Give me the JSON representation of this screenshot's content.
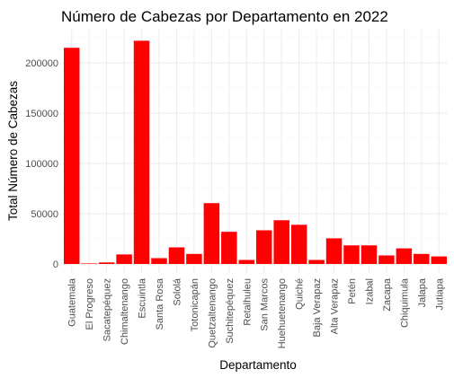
{
  "chart_data": {
    "type": "bar",
    "title": "Número de Cabezas por Departamento en 2022",
    "xlabel": "Departamento",
    "ylabel": "Total Número de Cabezas",
    "categories": [
      "Guatemala",
      "El Progreso",
      "Sacatepéquez",
      "Chimaltenango",
      "Escuintla",
      "Santa Rosa",
      "Sololá",
      "Totonicapán",
      "Quetzaltenango",
      "Suchitepéquez",
      "Retalhuleu",
      "San Marcos",
      "Huehuetenango",
      "Quiché",
      "Baja Verapaz",
      "Alta Verapaz",
      "Petén",
      "Izabal",
      "Zacapa",
      "Chiquimula",
      "Jalapa",
      "Jutiapa"
    ],
    "values": [
      215000,
      300,
      1500,
      9500,
      222000,
      5800,
      16500,
      10000,
      60500,
      32000,
      4000,
      33500,
      43500,
      39000,
      4000,
      25500,
      18500,
      18500,
      8500,
      15500,
      10000,
      7500
    ],
    "ylim": [
      0,
      230000
    ],
    "yticks": [
      0,
      50000,
      100000,
      150000,
      200000
    ],
    "ytick_labels": [
      "0",
      "50000",
      "100000",
      "150000",
      "200000"
    ],
    "bar_color": "#ff0000",
    "grid": true
  }
}
